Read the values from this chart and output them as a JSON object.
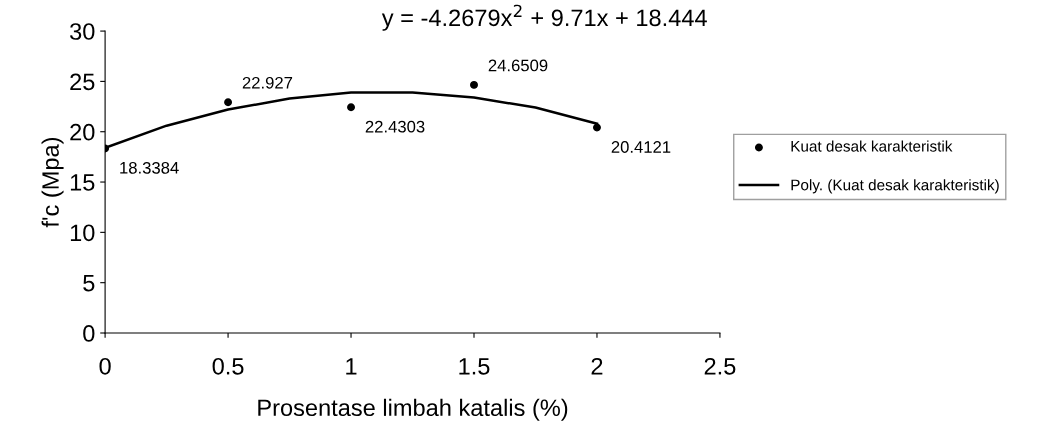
{
  "chart_data": {
    "type": "scatter",
    "xlabel": "Prosentase limbah katalis (%)",
    "ylabel": "f'c (Mpa)",
    "xlim": [
      0,
      2.5
    ],
    "xticks": [
      0,
      0.5,
      1,
      1.5,
      2,
      2.5
    ],
    "ylim": [
      0,
      30
    ],
    "yticks": [
      0,
      5,
      10,
      15,
      20,
      25,
      30
    ],
    "grid": false,
    "legend": "right",
    "annotations": [
      "y = -4.2679x$^{2}$ + 9.71x + 18.444"
    ],
    "series": [
      {
        "name": "Kuat desak karakteristik",
        "marker": "circle",
        "color": "#000000",
        "x": [
          0,
          0.5,
          1,
          1.5,
          2
        ],
        "values": [
          18.3384,
          22.927,
          22.4303,
          24.6509,
          20.4121
        ],
        "value_labels": [
          "18.3384",
          "22.927",
          "22.4303",
          "24.6509",
          "20.4121"
        ]
      },
      {
        "name": "Poly. (Kuat desak karakteristik)",
        "type": "line",
        "marker": "none",
        "line_style": "solid",
        "color": "#000000",
        "x": [
          0,
          0.25,
          0.5,
          0.75,
          1,
          1.25,
          1.5,
          1.75,
          2
        ],
        "values": [
          18.4,
          20.6,
          22.2,
          23.3,
          23.9,
          23.9,
          23.4,
          22.4,
          20.8
        ]
      }
    ]
  }
}
